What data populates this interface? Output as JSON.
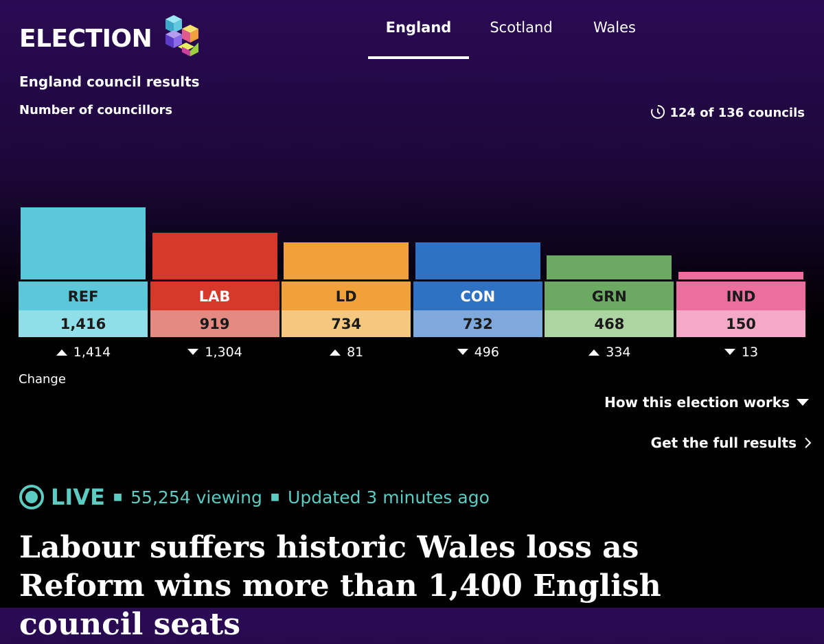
{
  "header": {
    "logo": "ELECTION",
    "nav": [
      "England",
      "Scotland",
      "Wales"
    ],
    "active_tab": 0
  },
  "chart_data": {
    "type": "bar",
    "title": "England council results",
    "subtitle": "Number of councillors",
    "progress": "124 of 136 councils",
    "categories": [
      "REF",
      "LAB",
      "LD",
      "CON",
      "GRN",
      "IND"
    ],
    "values": [
      1416,
      919,
      734,
      732,
      468,
      150
    ],
    "value_labels": [
      "1,416",
      "919",
      "734",
      "732",
      "468",
      "150"
    ],
    "colors": [
      "#5ac8d8",
      "#d6392a",
      "#f0a13a",
      "#2f72c4",
      "#6caa63",
      "#ec6e9e"
    ],
    "light_colors": [
      "#90dfe8",
      "#e58a80",
      "#f6c77f",
      "#7fa9dc",
      "#acd5a2",
      "#f3a9c7"
    ],
    "label_text_colors": [
      "#1a1a1a",
      "#ffffff",
      "#1a1a1a",
      "#ffffff",
      "#1a1a1a",
      "#1a1a1a"
    ],
    "change": {
      "name": "Change",
      "values": [
        1414,
        -1304,
        81,
        -496,
        334,
        -13
      ],
      "value_labels": [
        "1,414",
        "1,304",
        "81",
        "496",
        "334",
        "13"
      ]
    }
  },
  "links": [
    "How this election works",
    "Get the full results"
  ],
  "live": {
    "badge": "LIVE",
    "viewing": "55,254 viewing",
    "updated": "Updated 3 minutes ago"
  },
  "headline": "Labour suffers historic Wales loss as Reform wins more than 1,400 English council seats"
}
